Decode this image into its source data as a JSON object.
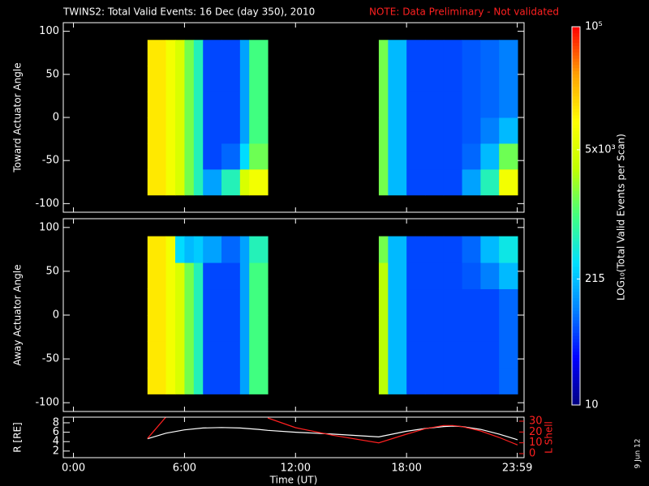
{
  "title": "TWINS2: Total Valid Events: 16 Dec (day 350), 2010",
  "note": "NOTE: Data Preliminary - Not validated",
  "date_stamp": "9 Jun 12",
  "colorbar": {
    "label": "LOG₁₀(Total Valid Events per Scan)",
    "lim": [
      10,
      100000
    ],
    "log": true,
    "ticks": [
      10,
      215,
      {
        "value": 5000,
        "label": "5x10³"
      },
      {
        "value": 100000,
        "label": "10⁵"
      }
    ],
    "colormap": [
      "#000080",
      "#0000ff",
      "#0080ff",
      "#00e0ff",
      "#40ff80",
      "#c0ff00",
      "#ffff00",
      "#ffa000",
      "#ff0000"
    ]
  },
  "chart_data": [
    {
      "type": "heatmap",
      "ylabel": "Toward Actuator Angle",
      "xlim": [
        -0.55,
        24.35
      ],
      "ylim": [
        -110,
        110
      ],
      "yticks": [
        -100,
        -50,
        0,
        50,
        100
      ],
      "x_edges": [
        4,
        5,
        5.5,
        6,
        6.5,
        7,
        8,
        9,
        9.5,
        10.5,
        16.5,
        17,
        18,
        19,
        20,
        21,
        22,
        23,
        24
      ],
      "y_edges": [
        -90,
        -60,
        -30,
        0,
        30,
        60,
        90
      ],
      "z": [
        [
          13000,
          8000,
          5000,
          1600,
          600,
          150,
          600,
          5000,
          8000,
          null,
          1600,
          200,
          60,
          60,
          60,
          150,
          600,
          8000
        ],
        [
          13000,
          8000,
          5000,
          1600,
          600,
          60,
          80,
          300,
          1500,
          null,
          1600,
          200,
          60,
          60,
          60,
          80,
          200,
          1500
        ],
        [
          13000,
          8000,
          5000,
          1600,
          600,
          60,
          60,
          150,
          1000,
          null,
          1600,
          200,
          60,
          60,
          60,
          70,
          100,
          200
        ],
        [
          13000,
          8000,
          5000,
          1600,
          600,
          60,
          60,
          150,
          1000,
          null,
          1600,
          200,
          60,
          60,
          60,
          70,
          80,
          100
        ],
        [
          13000,
          8000,
          5000,
          1600,
          600,
          60,
          60,
          150,
          1000,
          null,
          1600,
          200,
          60,
          60,
          60,
          70,
          80,
          100
        ],
        [
          13000,
          8000,
          5000,
          1600,
          600,
          60,
          60,
          150,
          1000,
          null,
          1600,
          200,
          60,
          60,
          60,
          70,
          80,
          100
        ]
      ]
    },
    {
      "type": "heatmap",
      "ylabel": "Away Actuator Angle",
      "xlim": [
        -0.55,
        24.35
      ],
      "ylim": [
        -110,
        110
      ],
      "yticks": [
        -100,
        -50,
        0,
        50,
        100
      ],
      "x_edges": [
        4,
        5,
        5.5,
        6,
        6.5,
        7,
        8,
        9,
        9.5,
        10.5,
        16.5,
        17,
        18,
        19,
        20,
        21,
        22,
        23,
        24
      ],
      "y_edges": [
        -90,
        -60,
        -30,
        0,
        30,
        60,
        90
      ],
      "z": [
        [
          13000,
          8000,
          5000,
          1600,
          600,
          60,
          60,
          150,
          1000,
          null,
          3000,
          200,
          60,
          60,
          60,
          60,
          60,
          80
        ],
        [
          13000,
          8000,
          5000,
          1600,
          600,
          60,
          60,
          150,
          1000,
          null,
          3000,
          200,
          60,
          60,
          60,
          60,
          60,
          80
        ],
        [
          13000,
          8000,
          5000,
          1600,
          600,
          60,
          60,
          150,
          1000,
          null,
          3000,
          200,
          60,
          60,
          60,
          60,
          60,
          80
        ],
        [
          13000,
          8000,
          5000,
          1600,
          600,
          60,
          60,
          150,
          1000,
          null,
          3000,
          200,
          60,
          60,
          60,
          60,
          60,
          80
        ],
        [
          13000,
          8000,
          5000,
          1600,
          600,
          60,
          60,
          150,
          1000,
          null,
          3000,
          200,
          60,
          60,
          60,
          70,
          100,
          200
        ],
        [
          13000,
          8000,
          300,
          200,
          250,
          150,
          80,
          150,
          600,
          null,
          1600,
          200,
          60,
          60,
          60,
          80,
          200,
          400
        ]
      ]
    },
    {
      "type": "line",
      "ylabel": "R [RE]",
      "y2label": "L Shell",
      "xlabel": "Time (UT)",
      "xlim": [
        -0.55,
        24.35
      ],
      "xticks": [
        {
          "value": 0,
          "label": "0:00"
        },
        {
          "value": 6,
          "label": "6:00"
        },
        {
          "value": 12,
          "label": "12:00"
        },
        {
          "value": 18,
          "label": "18:00"
        },
        {
          "value": 23.983,
          "label": "23:59"
        }
      ],
      "ylim": [
        0.6,
        9.2
      ],
      "yticks": [
        2,
        4,
        6,
        8
      ],
      "y2lim": [
        -3.75,
        33.75
      ],
      "y2ticks": [
        0,
        10,
        20,
        30
      ],
      "x": [
        4,
        5,
        6,
        7,
        8,
        9,
        10,
        10.5,
        12,
        14,
        16.5,
        18,
        19,
        20,
        20.5,
        21,
        22,
        23,
        24
      ],
      "series": [
        {
          "name": "R",
          "color": "#ffffff",
          "values": [
            4.6,
            5.8,
            6.5,
            6.9,
            7.0,
            6.9,
            6.6,
            6.4,
            6.0,
            5.6,
            5.0,
            6.2,
            6.8,
            7.2,
            7.3,
            7.2,
            6.6,
            5.6,
            4.4
          ]
        },
        {
          "name": "L Shell",
          "color": "#ff2020",
          "axis": "y2",
          "values": [
            14,
            34,
            null,
            null,
            null,
            null,
            null,
            33,
            24,
            17,
            10,
            18,
            23,
            26,
            26,
            25,
            21,
            15,
            8
          ]
        }
      ]
    }
  ]
}
